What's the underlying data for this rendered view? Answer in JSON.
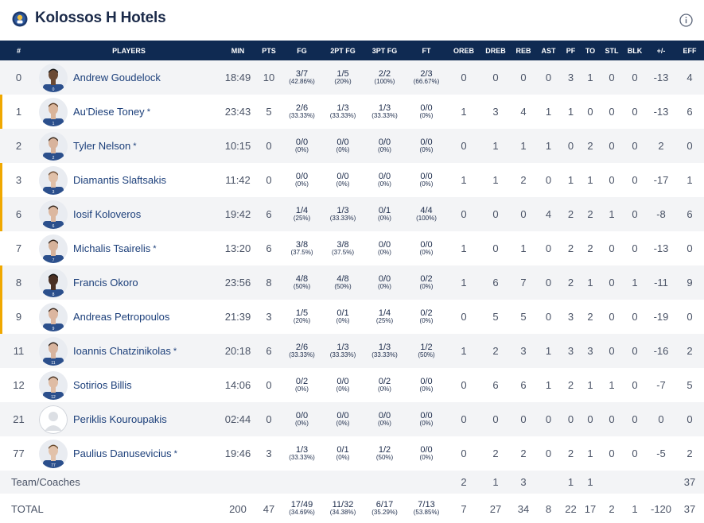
{
  "team": {
    "name": "Kolossos H Hotels"
  },
  "columns": [
    "#",
    "PLAYERS",
    "MIN",
    "PTS",
    "FG",
    "2PT FG",
    "3PT FG",
    "FT",
    "OREB",
    "DREB",
    "REB",
    "AST",
    "PF",
    "TO",
    "STL",
    "BLK",
    "+/-",
    "EFF"
  ],
  "players": [
    {
      "num": "0",
      "name": "Andrew Goudelock",
      "star": false,
      "starter": false,
      "min": "18:49",
      "pts": "10",
      "fg": "3/7",
      "fg_pct": "(42.86%)",
      "fg2": "1/5",
      "fg2_pct": "(20%)",
      "fg3": "2/2",
      "fg3_pct": "(100%)",
      "ft": "2/3",
      "ft_pct": "(66.67%)",
      "oreb": "0",
      "dreb": "0",
      "reb": "0",
      "ast": "0",
      "pf": "3",
      "to": "1",
      "stl": "0",
      "blk": "0",
      "pm": "-13",
      "eff": "4",
      "skin": "#6b4a34",
      "hair": "#1a1a1a"
    },
    {
      "num": "1",
      "name": "Au'Diese Toney",
      "star": true,
      "starter": true,
      "min": "23:43",
      "pts": "5",
      "fg": "2/6",
      "fg_pct": "(33.33%)",
      "fg2": "1/3",
      "fg2_pct": "(33.33%)",
      "fg3": "1/3",
      "fg3_pct": "(33.33%)",
      "ft": "0/0",
      "ft_pct": "(0%)",
      "oreb": "1",
      "dreb": "3",
      "reb": "4",
      "ast": "1",
      "pf": "1",
      "to": "0",
      "stl": "0",
      "blk": "0",
      "pm": "-13",
      "eff": "6",
      "skin": "#d9b49a",
      "hair": "#5a3b22"
    },
    {
      "num": "2",
      "name": "Tyler Nelson",
      "star": true,
      "starter": false,
      "min": "10:15",
      "pts": "0",
      "fg": "0/0",
      "fg_pct": "(0%)",
      "fg2": "0/0",
      "fg2_pct": "(0%)",
      "fg3": "0/0",
      "fg3_pct": "(0%)",
      "ft": "0/0",
      "ft_pct": "(0%)",
      "oreb": "0",
      "dreb": "1",
      "reb": "1",
      "ast": "1",
      "pf": "0",
      "to": "2",
      "stl": "0",
      "blk": "0",
      "pm": "2",
      "eff": "0",
      "skin": "#d8b39c",
      "hair": "#3a2a1e"
    },
    {
      "num": "3",
      "name": "Diamantis Slaftsakis",
      "star": false,
      "starter": true,
      "min": "11:42",
      "pts": "0",
      "fg": "0/0",
      "fg_pct": "(0%)",
      "fg2": "0/0",
      "fg2_pct": "(0%)",
      "fg3": "0/0",
      "fg3_pct": "(0%)",
      "ft": "0/0",
      "ft_pct": "(0%)",
      "oreb": "1",
      "dreb": "1",
      "reb": "2",
      "ast": "0",
      "pf": "1",
      "to": "1",
      "stl": "0",
      "blk": "0",
      "pm": "-17",
      "eff": "1",
      "skin": "#e0c0a8",
      "hair": "#6a4a30"
    },
    {
      "num": "6",
      "name": "Iosif Koloveros",
      "star": false,
      "starter": true,
      "min": "19:42",
      "pts": "6",
      "fg": "1/4",
      "fg_pct": "(25%)",
      "fg2": "1/3",
      "fg2_pct": "(33.33%)",
      "fg3": "0/1",
      "fg3_pct": "(0%)",
      "ft": "4/4",
      "ft_pct": "(100%)",
      "oreb": "0",
      "dreb": "0",
      "reb": "0",
      "ast": "4",
      "pf": "2",
      "to": "2",
      "stl": "1",
      "blk": "0",
      "pm": "-8",
      "eff": "6",
      "skin": "#dcb8a0",
      "hair": "#2e2018"
    },
    {
      "num": "7",
      "name": "Michalis Tsairelis",
      "star": true,
      "starter": false,
      "min": "13:20",
      "pts": "6",
      "fg": "3/8",
      "fg_pct": "(37.5%)",
      "fg2": "3/8",
      "fg2_pct": "(37.5%)",
      "fg3": "0/0",
      "fg3_pct": "(0%)",
      "ft": "0/0",
      "ft_pct": "(0%)",
      "oreb": "1",
      "dreb": "0",
      "reb": "1",
      "ast": "0",
      "pf": "2",
      "to": "2",
      "stl": "0",
      "blk": "0",
      "pm": "-13",
      "eff": "0",
      "skin": "#d6b29a",
      "hair": "#2a1d14"
    },
    {
      "num": "8",
      "name": "Francis Okoro",
      "star": false,
      "starter": true,
      "min": "23:56",
      "pts": "8",
      "fg": "4/8",
      "fg_pct": "(50%)",
      "fg2": "4/8",
      "fg2_pct": "(50%)",
      "fg3": "0/0",
      "fg3_pct": "(0%)",
      "ft": "0/2",
      "ft_pct": "(0%)",
      "oreb": "1",
      "dreb": "6",
      "reb": "7",
      "ast": "0",
      "pf": "2",
      "to": "1",
      "stl": "0",
      "blk": "1",
      "pm": "-11",
      "eff": "9",
      "skin": "#4a3024",
      "hair": "#111111"
    },
    {
      "num": "9",
      "name": "Andreas Petropoulos",
      "star": false,
      "starter": true,
      "min": "21:39",
      "pts": "3",
      "fg": "1/5",
      "fg_pct": "(20%)",
      "fg2": "0/1",
      "fg2_pct": "(0%)",
      "fg3": "1/4",
      "fg3_pct": "(25%)",
      "ft": "0/2",
      "ft_pct": "(0%)",
      "oreb": "0",
      "dreb": "5",
      "reb": "5",
      "ast": "0",
      "pf": "3",
      "to": "2",
      "stl": "0",
      "blk": "0",
      "pm": "-19",
      "eff": "0",
      "skin": "#dcb6a0",
      "hair": "#3a281c"
    },
    {
      "num": "11",
      "name": "Ioannis Chatzinikolas",
      "star": true,
      "starter": false,
      "min": "20:18",
      "pts": "6",
      "fg": "2/6",
      "fg_pct": "(33.33%)",
      "fg2": "1/3",
      "fg2_pct": "(33.33%)",
      "fg3": "1/3",
      "fg3_pct": "(33.33%)",
      "ft": "1/2",
      "ft_pct": "(50%)",
      "oreb": "1",
      "dreb": "2",
      "reb": "3",
      "ast": "1",
      "pf": "3",
      "to": "3",
      "stl": "0",
      "blk": "0",
      "pm": "-16",
      "eff": "2",
      "skin": "#d8b49e",
      "hair": "#2a1e16"
    },
    {
      "num": "12",
      "name": "Sotirios Billis",
      "star": false,
      "starter": false,
      "min": "14:06",
      "pts": "0",
      "fg": "0/2",
      "fg_pct": "(0%)",
      "fg2": "0/0",
      "fg2_pct": "(0%)",
      "fg3": "0/2",
      "fg3_pct": "(0%)",
      "ft": "0/0",
      "ft_pct": "(0%)",
      "oreb": "0",
      "dreb": "6",
      "reb": "6",
      "ast": "1",
      "pf": "2",
      "to": "1",
      "stl": "1",
      "blk": "0",
      "pm": "-7",
      "eff": "5",
      "skin": "#dfbca4",
      "hair": "#4a3424"
    },
    {
      "num": "21",
      "name": "Periklis Kouroupakis",
      "star": false,
      "starter": false,
      "placeholder": true,
      "min": "02:44",
      "pts": "0",
      "fg": "0/0",
      "fg_pct": "(0%)",
      "fg2": "0/0",
      "fg2_pct": "(0%)",
      "fg3": "0/0",
      "fg3_pct": "(0%)",
      "ft": "0/0",
      "ft_pct": "(0%)",
      "oreb": "0",
      "dreb": "0",
      "reb": "0",
      "ast": "0",
      "pf": "0",
      "to": "0",
      "stl": "0",
      "blk": "0",
      "pm": "0",
      "eff": "0",
      "skin": "#e6e6e6",
      "hair": "#e6e6e6"
    },
    {
      "num": "77",
      "name": "Paulius Danusevicius",
      "star": true,
      "starter": false,
      "min": "19:46",
      "pts": "3",
      "fg": "1/3",
      "fg_pct": "(33.33%)",
      "fg2": "0/1",
      "fg2_pct": "(0%)",
      "fg3": "1/2",
      "fg3_pct": "(50%)",
      "ft": "0/0",
      "ft_pct": "(0%)",
      "oreb": "0",
      "dreb": "2",
      "reb": "2",
      "ast": "0",
      "pf": "2",
      "to": "1",
      "stl": "0",
      "blk": "0",
      "pm": "-5",
      "eff": "2",
      "skin": "#e2c2aa",
      "hair": "#6a4c30"
    }
  ],
  "team_row": {
    "label": "Team/Coaches",
    "oreb": "2",
    "dreb": "1",
    "reb": "3",
    "ast": "",
    "pf": "1",
    "to": "1",
    "stl": "",
    "blk": "",
    "pm": "",
    "eff": "37"
  },
  "total_row": {
    "label": "TOTAL",
    "min": "200",
    "pts": "47",
    "fg": "17/49",
    "fg_pct": "(34.69%)",
    "fg2": "11/32",
    "fg2_pct": "(34.38%)",
    "fg3": "6/17",
    "fg3_pct": "(35.29%)",
    "ft": "7/13",
    "ft_pct": "(53.85%)",
    "oreb": "7",
    "dreb": "27",
    "reb": "34",
    "ast": "8",
    "pf": "22",
    "to": "17",
    "stl": "2",
    "blk": "1",
    "pm": "-120",
    "eff": "37"
  },
  "colors": {
    "header_bg": "#0f2a52",
    "starter_bar": "#f0a800",
    "row_alt": "#f3f4f6",
    "name_link": "#1c3f7a",
    "jersey": "#2b4f8c"
  },
  "icons": {
    "team_logo": "team-logo-icon",
    "info": "info-icon"
  }
}
